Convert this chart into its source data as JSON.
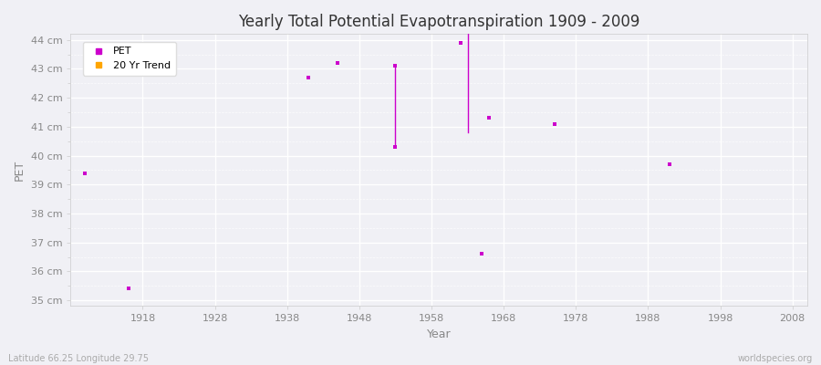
{
  "title": "Yearly Total Potential Evapotranspiration 1909 - 2009",
  "xlabel": "Year",
  "ylabel": "PET",
  "background_color": "#f0f0f5",
  "plot_bg_color": "#f0f0f5",
  "xlim": [
    1908,
    2010
  ],
  "ylim": [
    34.8,
    44.2
  ],
  "yticks": [
    35,
    36,
    37,
    38,
    39,
    40,
    41,
    42,
    43,
    44
  ],
  "ytick_labels": [
    "35 cm",
    "36 cm",
    "37 cm",
    "38 cm",
    "39 cm",
    "40 cm",
    "41 cm",
    "42 cm",
    "43 cm",
    "44 cm"
  ],
  "xticks": [
    1918,
    1928,
    1938,
    1948,
    1958,
    1968,
    1978,
    1988,
    1998,
    2008
  ],
  "pet_color": "#cc00cc",
  "trend_color": "#ffa500",
  "footer_left": "Latitude 66.25 Longitude 29.75",
  "footer_right": "worldspecies.org",
  "pet_points": [
    [
      1910,
      39.4
    ],
    [
      1916,
      35.4
    ],
    [
      1941,
      42.7
    ],
    [
      1945,
      43.2
    ],
    [
      1953,
      43.1
    ],
    [
      1953,
      40.3
    ],
    [
      1962,
      43.9
    ],
    [
      1963,
      44.3
    ],
    [
      1965,
      36.6
    ],
    [
      1966,
      41.3
    ],
    [
      1975,
      41.1
    ],
    [
      1991,
      39.7
    ]
  ],
  "trend_lines": [
    [
      [
        1953,
        43.1
      ],
      [
        1953,
        40.3
      ]
    ],
    [
      [
        1963,
        44.3
      ],
      [
        1963,
        40.8
      ]
    ]
  ]
}
